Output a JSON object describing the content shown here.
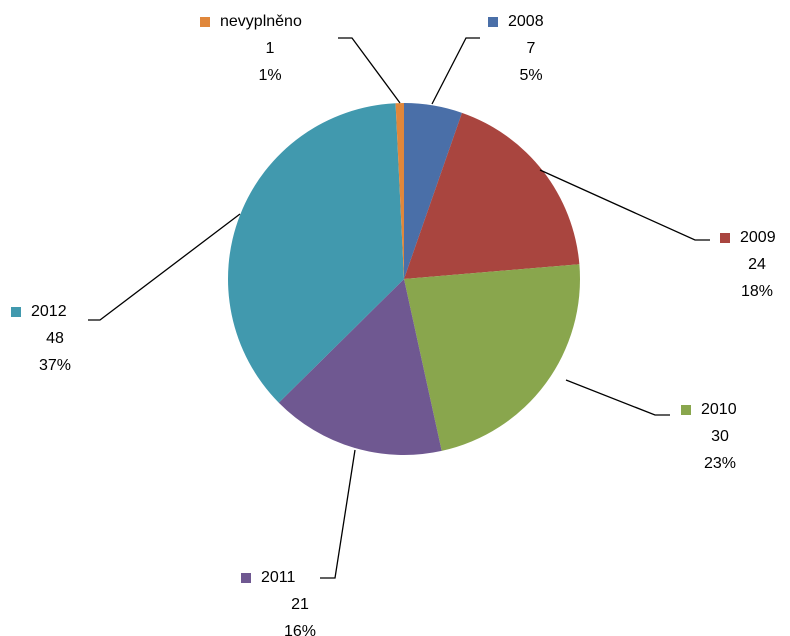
{
  "chart_data": {
    "type": "pie",
    "categories": [
      "2008",
      "2009",
      "2010",
      "2011",
      "2012",
      "nevyplněno"
    ],
    "values": [
      7,
      24,
      30,
      21,
      48,
      1
    ],
    "percent_labels": [
      "5%",
      "18%",
      "23%",
      "16%",
      "37%",
      "1%"
    ],
    "colors": [
      "#4a6fa8",
      "#a9453f",
      "#89a64d",
      "#6f5891",
      "#4199ae",
      "#e0873b"
    ]
  }
}
